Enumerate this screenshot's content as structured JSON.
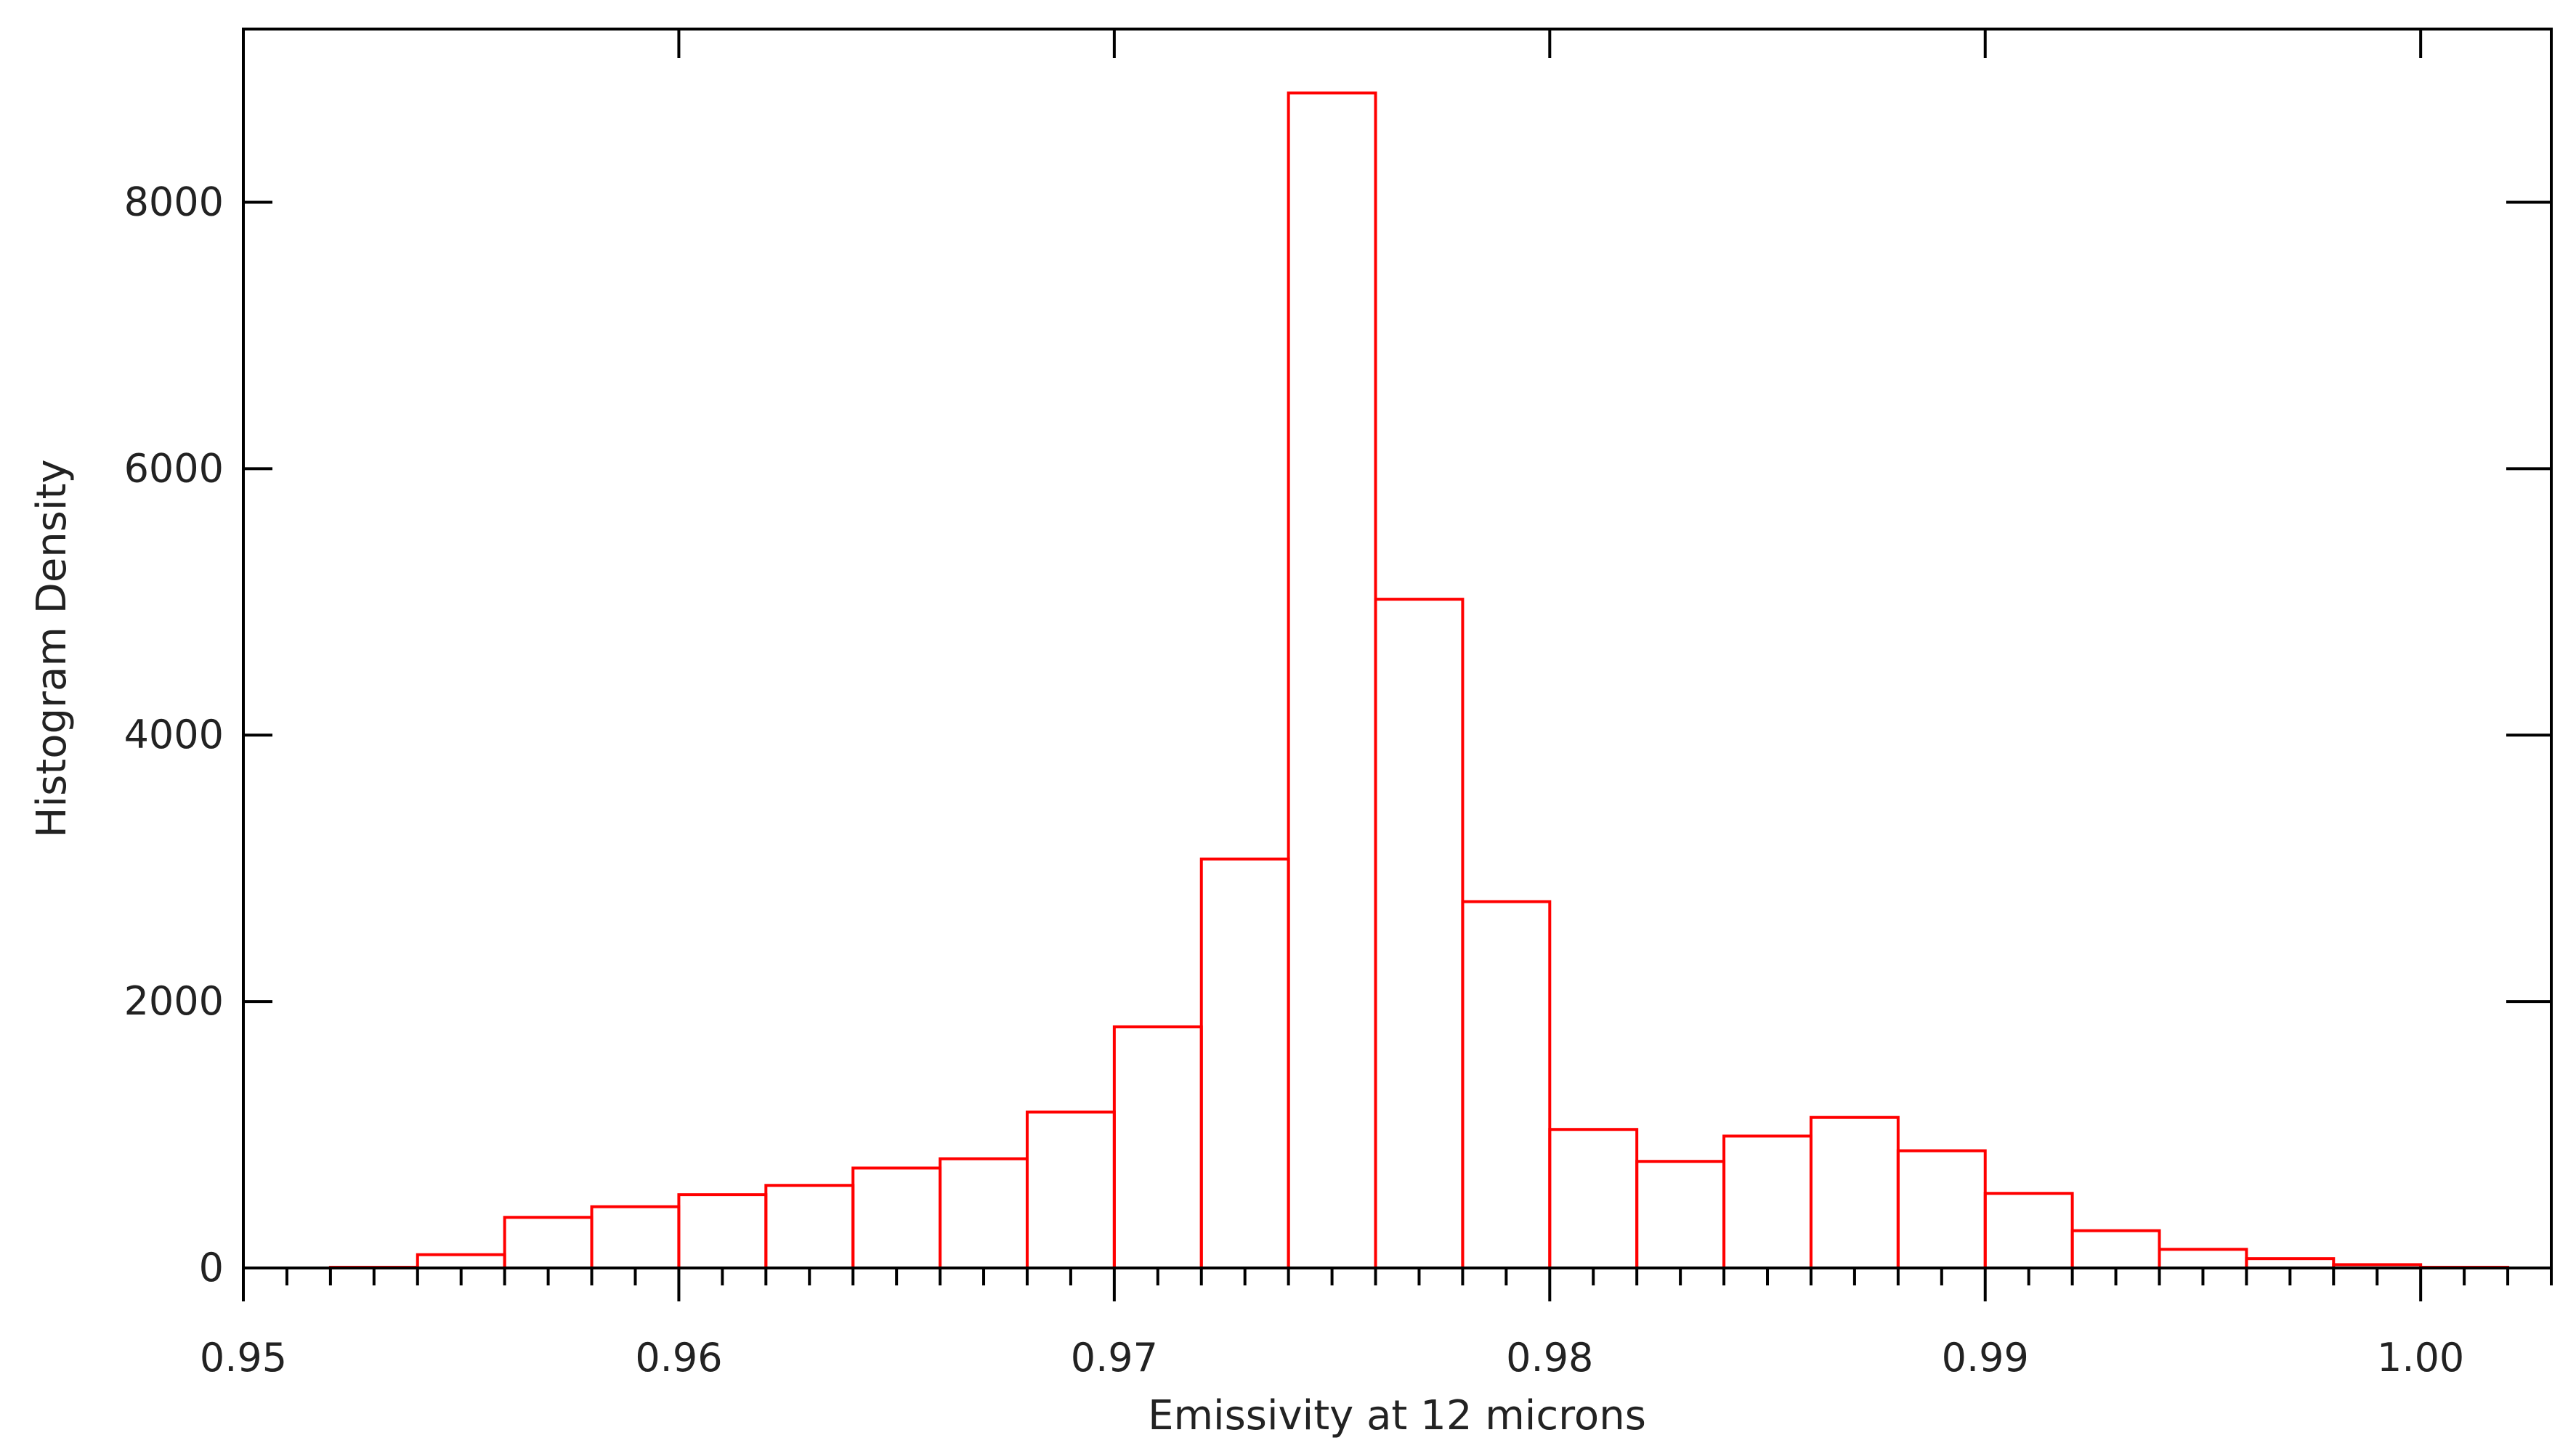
{
  "chart_data": {
    "type": "bar",
    "title": "",
    "xlabel": "Emissivity at 12 microns",
    "ylabel": "Histogram Density",
    "xlim": [
      0.95,
      1.003
    ],
    "ylim": [
      0,
      9300
    ],
    "x_ticks": [
      {
        "value": 0.95,
        "label": "0.95"
      },
      {
        "value": 0.96,
        "label": "0.96"
      },
      {
        "value": 0.97,
        "label": "0.97"
      },
      {
        "value": 0.98,
        "label": "0.98"
      },
      {
        "value": 0.99,
        "label": "0.99"
      },
      {
        "value": 1.0,
        "label": "1.00"
      }
    ],
    "y_ticks": [
      {
        "value": 0,
        "label": "0"
      },
      {
        "value": 2000,
        "label": "2000"
      },
      {
        "value": 4000,
        "label": "4000"
      },
      {
        "value": 6000,
        "label": "6000"
      },
      {
        "value": 8000,
        "label": "8000"
      }
    ],
    "x_minor_step": 0.001,
    "grid": false,
    "bar_color": "#ff0000",
    "axis_color": "#000000",
    "bin_width": 0.002,
    "bin_starts": [
      0.952,
      0.954,
      0.956,
      0.958,
      0.96,
      0.962,
      0.964,
      0.966,
      0.968,
      0.97,
      0.972,
      0.974,
      0.976,
      0.978,
      0.98,
      0.982,
      0.984,
      0.986,
      0.988,
      0.99,
      0.992,
      0.994,
      0.996,
      0.998,
      1.0
    ],
    "values": [
      5,
      100,
      380,
      460,
      550,
      620,
      750,
      820,
      1170,
      1810,
      3070,
      8820,
      5020,
      2750,
      1040,
      800,
      990,
      1130,
      880,
      560,
      280,
      140,
      70,
      25,
      5
    ]
  }
}
